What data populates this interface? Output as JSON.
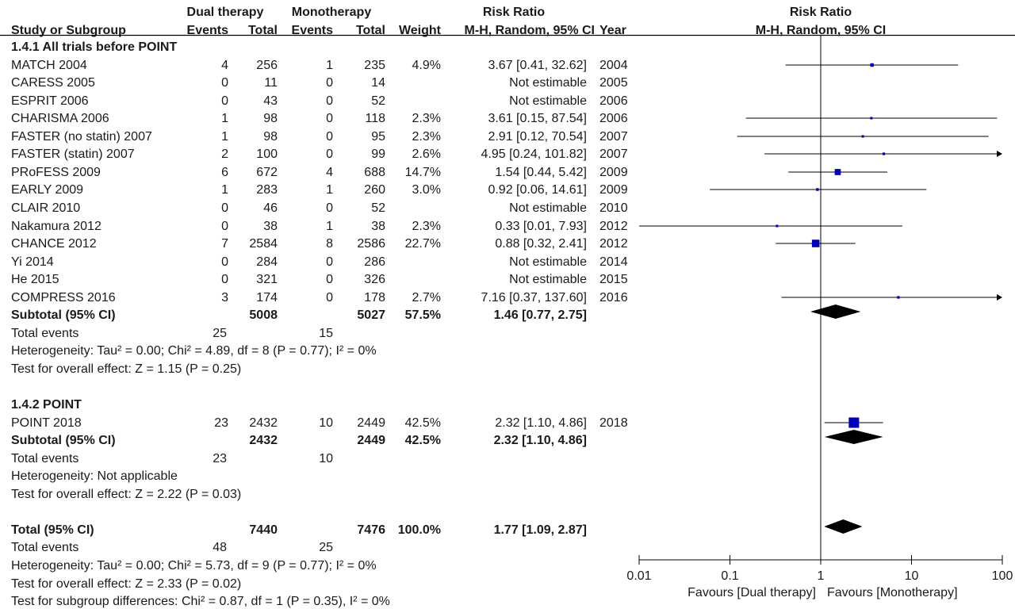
{
  "headers": {
    "study_col": "Study or Subgroup",
    "dual_group": "Dual therapy",
    "mono_group": "Monotherapy",
    "events": "Events",
    "total": "Total",
    "weight": "Weight",
    "rr_title": "Risk Ratio",
    "rr_method": "M-H, Random, 95% CI",
    "year": "Year",
    "plot_title": "Risk Ratio",
    "plot_method": "M-H, Random, 95% CI"
  },
  "groups": [
    {
      "label": "1.4.1 All trials before POINT",
      "rows": [
        {
          "study": "MATCH 2004",
          "e1": "4",
          "t1": "256",
          "e2": "1",
          "t2": "235",
          "weight": "4.9%",
          "ci_text": "3.67 [0.41, 32.62]",
          "year": "2004"
        },
        {
          "study": "CARESS 2005",
          "e1": "0",
          "t1": "11",
          "e2": "0",
          "t2": "14",
          "weight": "",
          "ci_text": "Not estimable",
          "year": "2005"
        },
        {
          "study": "ESPRIT 2006",
          "e1": "0",
          "t1": "43",
          "e2": "0",
          "t2": "52",
          "weight": "",
          "ci_text": "Not estimable",
          "year": "2006"
        },
        {
          "study": "CHARISMA 2006",
          "e1": "1",
          "t1": "98",
          "e2": "0",
          "t2": "118",
          "weight": "2.3%",
          "ci_text": "3.61 [0.15, 87.54]",
          "year": "2006"
        },
        {
          "study": "FASTER (no statin) 2007",
          "e1": "1",
          "t1": "98",
          "e2": "0",
          "t2": "95",
          "weight": "2.3%",
          "ci_text": "2.91 [0.12, 70.54]",
          "year": "2007"
        },
        {
          "study": "FASTER (statin) 2007",
          "e1": "2",
          "t1": "100",
          "e2": "0",
          "t2": "99",
          "weight": "2.6%",
          "ci_text": "4.95 [0.24, 101.82]",
          "year": "2007"
        },
        {
          "study": "PRoFESS 2009",
          "e1": "6",
          "t1": "672",
          "e2": "4",
          "t2": "688",
          "weight": "14.7%",
          "ci_text": "1.54 [0.44, 5.42]",
          "year": "2009"
        },
        {
          "study": "EARLY 2009",
          "e1": "1",
          "t1": "283",
          "e2": "1",
          "t2": "260",
          "weight": "3.0%",
          "ci_text": "0.92 [0.06, 14.61]",
          "year": "2009"
        },
        {
          "study": "CLAIR 2010",
          "e1": "0",
          "t1": "46",
          "e2": "0",
          "t2": "52",
          "weight": "",
          "ci_text": "Not estimable",
          "year": "2010"
        },
        {
          "study": "Nakamura 2012",
          "e1": "0",
          "t1": "38",
          "e2": "1",
          "t2": "38",
          "weight": "2.3%",
          "ci_text": "0.33 [0.01, 7.93]",
          "year": "2012"
        },
        {
          "study": "CHANCE 2012",
          "e1": "7",
          "t1": "2584",
          "e2": "8",
          "t2": "2586",
          "weight": "22.7%",
          "ci_text": "0.88 [0.32, 2.41]",
          "year": "2012"
        },
        {
          "study": "Yi 2014",
          "e1": "0",
          "t1": "284",
          "e2": "0",
          "t2": "286",
          "weight": "",
          "ci_text": "Not estimable",
          "year": "2014"
        },
        {
          "study": "He 2015",
          "e1": "0",
          "t1": "321",
          "e2": "0",
          "t2": "326",
          "weight": "",
          "ci_text": "Not estimable",
          "year": "2015"
        },
        {
          "study": "COMPRESS 2016",
          "e1": "3",
          "t1": "174",
          "e2": "0",
          "t2": "178",
          "weight": "2.7%",
          "ci_text": "7.16 [0.37, 137.60]",
          "year": "2016"
        }
      ],
      "subtotal": {
        "label": "Subtotal (95% CI)",
        "t1": "5008",
        "t2": "5027",
        "weight": "57.5%",
        "ci_text": "1.46 [0.77, 2.75]"
      },
      "total_events": {
        "label": "Total events",
        "e1": "25",
        "e2": "15"
      },
      "heterogeneity": "Heterogeneity: Tau² = 0.00; Chi² = 4.89, df = 8 (P = 0.77); I² = 0%",
      "overall_effect": "Test for overall effect: Z = 1.15 (P = 0.25)"
    },
    {
      "label": "1.4.2 POINT",
      "rows": [
        {
          "study": "POINT 2018",
          "e1": "23",
          "t1": "2432",
          "e2": "10",
          "t2": "2449",
          "weight": "42.5%",
          "ci_text": "2.32 [1.10, 4.86]",
          "year": "2018"
        }
      ],
      "subtotal": {
        "label": "Subtotal (95% CI)",
        "t1": "2432",
        "t2": "2449",
        "weight": "42.5%",
        "ci_text": "2.32 [1.10, 4.86]"
      },
      "total_events": {
        "label": "Total events",
        "e1": "23",
        "e2": "10"
      },
      "heterogeneity": "Heterogeneity: Not applicable",
      "overall_effect": "Test for overall effect: Z = 2.22 (P = 0.03)"
    }
  ],
  "total": {
    "label": "Total (95% CI)",
    "t1": "7440",
    "t2": "7476",
    "weight": "100.0%",
    "ci_text": "1.77 [1.09, 2.87]"
  },
  "total_events": {
    "label": "Total events",
    "e1": "48",
    "e2": "25"
  },
  "heterogeneity": "Heterogeneity: Tau² = 0.00; Chi² = 5.73, df = 9 (P = 0.77); I² = 0%",
  "overall_effect": "Test for overall effect: Z = 2.33 (P = 0.02)",
  "subgroup_diff": "Test for subgroup differences: Chi² = 0.87, df = 1 (P = 0.35), I² = 0%",
  "axis": {
    "ticks": [
      "0.01",
      "0.1",
      "1",
      "10",
      "100"
    ],
    "favours_left": "Favours [Dual therapy]",
    "favours_right": "Favours [Monotherapy]"
  },
  "colors": {
    "study_marker": "#0000b4",
    "diamond": "#000000",
    "line": "#000000"
  },
  "chart_data": {
    "type": "forest",
    "scale": "log",
    "xlim": [
      0.01,
      100
    ],
    "reference_line": 1,
    "studies": [
      {
        "name": "MATCH 2004",
        "rr": 3.67,
        "lo": 0.41,
        "hi": 32.62,
        "weight": 4.9
      },
      {
        "name": "CHARISMA 2006",
        "rr": 3.61,
        "lo": 0.15,
        "hi": 87.54,
        "weight": 2.3
      },
      {
        "name": "FASTER (no statin) 2007",
        "rr": 2.91,
        "lo": 0.12,
        "hi": 70.54,
        "weight": 2.3
      },
      {
        "name": "FASTER (statin) 2007",
        "rr": 4.95,
        "lo": 0.24,
        "hi": 101.82,
        "weight": 2.6
      },
      {
        "name": "PRoFESS 2009",
        "rr": 1.54,
        "lo": 0.44,
        "hi": 5.42,
        "weight": 14.7
      },
      {
        "name": "EARLY 2009",
        "rr": 0.92,
        "lo": 0.06,
        "hi": 14.61,
        "weight": 3.0
      },
      {
        "name": "Nakamura 2012",
        "rr": 0.33,
        "lo": 0.01,
        "hi": 7.93,
        "weight": 2.3
      },
      {
        "name": "CHANCE 2012",
        "rr": 0.88,
        "lo": 0.32,
        "hi": 2.41,
        "weight": 22.7
      },
      {
        "name": "COMPRESS 2016",
        "rr": 7.16,
        "lo": 0.37,
        "hi": 137.6,
        "weight": 2.7
      },
      {
        "name": "POINT 2018",
        "rr": 2.32,
        "lo": 1.1,
        "hi": 4.86,
        "weight": 42.5
      }
    ],
    "pooled": [
      {
        "name": "Subtotal 1.4.1",
        "rr": 1.46,
        "lo": 0.77,
        "hi": 2.75
      },
      {
        "name": "Subtotal 1.4.2",
        "rr": 2.32,
        "lo": 1.1,
        "hi": 4.86
      },
      {
        "name": "Total",
        "rr": 1.77,
        "lo": 1.09,
        "hi": 2.87
      }
    ]
  }
}
